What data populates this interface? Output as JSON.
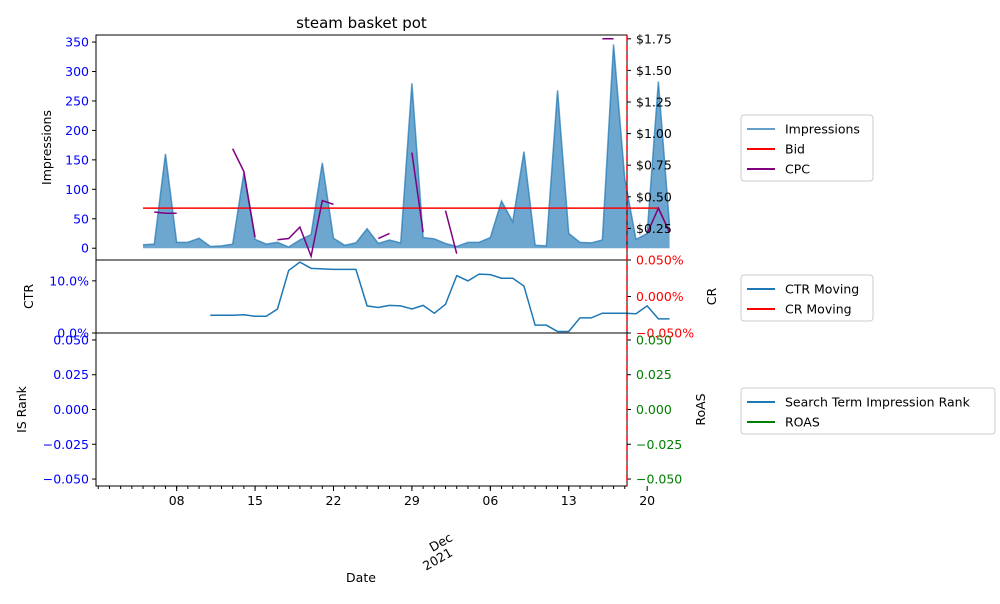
{
  "chart_data": {
    "type": "line",
    "title": "steam basket pot",
    "xlabel": "Date",
    "x_tick_labels": [
      "08",
      "15",
      "22",
      "29",
      "06",
      "13",
      "20"
    ],
    "x_month_label": [
      "Dec",
      "2021"
    ],
    "x_range_days": [
      -4.2,
      43.2
    ],
    "x_tick_days": [
      3,
      10,
      17,
      24,
      31,
      38,
      45
    ],
    "colors": {
      "impressions": "#1f77b4",
      "bid": "#ff0000",
      "cpc": "#800080",
      "ctr": "#1f77b4",
      "cr": "#ff0000",
      "is_rank": "#1f77b4",
      "roas": "#008000",
      "left_ticks": "#0000ff",
      "cr_ticks": "#ff0000",
      "roas_ticks": "#008000"
    },
    "panels": [
      {
        "name": "top",
        "ylabel": "Impressions",
        "ylim": [
          -20,
          362
        ],
        "y_ticks": [
          0,
          50,
          100,
          150,
          200,
          250,
          300,
          350
        ],
        "y2lim": [
          0,
          1.78
        ],
        "y2_ticks": [
          0.25,
          0.5,
          0.75,
          1.0,
          1.25,
          1.5,
          1.75
        ],
        "y2_tick_labels": [
          "$0.25",
          "$0.50",
          "$0.75",
          "$1.00",
          "$1.25",
          "$1.50",
          "$1.75"
        ],
        "legend": [
          "Impressions",
          "Bid",
          "CPC"
        ],
        "series": [
          {
            "name": "Impressions",
            "type": "area",
            "values": [
              6,
              7,
              160,
              10,
              10,
              17,
              3,
              4,
              7,
              128,
              15,
              7,
              10,
              2,
              14,
              23,
              145,
              17,
              5,
              9,
              33,
              8,
              14,
              9,
              280,
              18,
              16,
              8,
              3,
              10,
              10,
              18,
              80,
              45,
              164,
              5,
              4,
              268,
              25,
              10,
              9,
              14,
              346,
              118,
              15,
              25,
              283,
              38
            ]
          },
          {
            "name": "Bid",
            "type": "line",
            "values": [
              0.41,
              0.41,
              0.41,
              0.41,
              0.41,
              0.41,
              0.41,
              0.41,
              0.41,
              0.41,
              0.41,
              0.41,
              0.41,
              0.41,
              0.41,
              0.41,
              0.41,
              0.41,
              0.41,
              0.41,
              0.41,
              0.41,
              0.41,
              0.41,
              0.41,
              0.41,
              0.41,
              0.41,
              0.41,
              0.41,
              0.41,
              0.41,
              0.41,
              0.41,
              0.41,
              0.41,
              0.41,
              0.41,
              0.41,
              0.41,
              0.41,
              0.41,
              0.41,
              0.41,
              0.41,
              0.41,
              0.41,
              0.22
            ]
          },
          {
            "name": "CPC",
            "type": "line",
            "values": [
              null,
              0.38,
              0.37,
              0.37,
              null,
              null,
              null,
              null,
              0.88,
              0.7,
              0.18,
              null,
              0.16,
              0.17,
              0.26,
              0.03,
              0.47,
              0.44,
              null,
              null,
              null,
              0.17,
              0.21,
              null,
              0.85,
              0.22,
              null,
              0.39,
              0.05,
              null,
              null,
              null,
              null,
              null,
              null,
              null,
              null,
              null,
              null,
              null,
              null,
              1.75,
              1.75,
              null,
              null,
              0.21,
              0.41,
              0.22
            ]
          }
        ]
      },
      {
        "name": "middle",
        "ylabel": "CTR",
        "ylim": [
          0,
          0.14
        ],
        "y_ticks": [
          0,
          0.1
        ],
        "y_tick_labels": [
          "0.0%",
          "10.0%"
        ],
        "y2label": "CR",
        "y2lim": [
          -0.05,
          0.05
        ],
        "y2_ticks": [
          -0.05,
          0.0,
          0.05
        ],
        "y2_tick_labels": [
          "−0.050%",
          "0.000%",
          "0.050%"
        ],
        "legend": [
          "CTR Moving",
          "CR Moving"
        ],
        "series": [
          {
            "name": "CTR Moving",
            "type": "line",
            "values": [
              null,
              null,
              null,
              null,
              null,
              null,
              0.034,
              0.034,
              0.034,
              0.035,
              0.032,
              0.032,
              0.046,
              0.12,
              0.136,
              0.124,
              0.123,
              0.122,
              0.122,
              0.122,
              0.052,
              0.049,
              0.053,
              0.052,
              0.046,
              0.053,
              0.038,
              0.055,
              0.11,
              0.1,
              0.113,
              0.112,
              0.105,
              0.105,
              0.09,
              0.015,
              0.015,
              0.003,
              0.003,
              0.029,
              0.029,
              0.038,
              0.038,
              0.038,
              0.037,
              0.052,
              0.027,
              0.027
            ]
          },
          {
            "name": "CR Moving",
            "type": "line",
            "values": []
          }
        ]
      },
      {
        "name": "bottom",
        "ylabel": "IS Rank",
        "ylim": [
          -0.055,
          0.055
        ],
        "y_ticks": [
          -0.05,
          -0.025,
          0.0,
          0.025,
          0.05
        ],
        "y_tick_labels": [
          "−0.050",
          "−0.025",
          "0.000",
          "0.025",
          "0.050"
        ],
        "y2label": "RoAS",
        "y2lim": [
          -0.055,
          0.055
        ],
        "y2_ticks": [
          -0.05,
          -0.025,
          0.0,
          0.025,
          0.05
        ],
        "y2_tick_labels": [
          "−0.050",
          "−0.025",
          "0.000",
          "0.025",
          "0.050"
        ],
        "legend": [
          "Search Term Impression Rank",
          "ROAS"
        ],
        "series": [
          {
            "name": "Search Term Impression Rank",
            "type": "line",
            "values": []
          },
          {
            "name": "ROAS",
            "type": "line",
            "values": []
          }
        ]
      }
    ]
  }
}
